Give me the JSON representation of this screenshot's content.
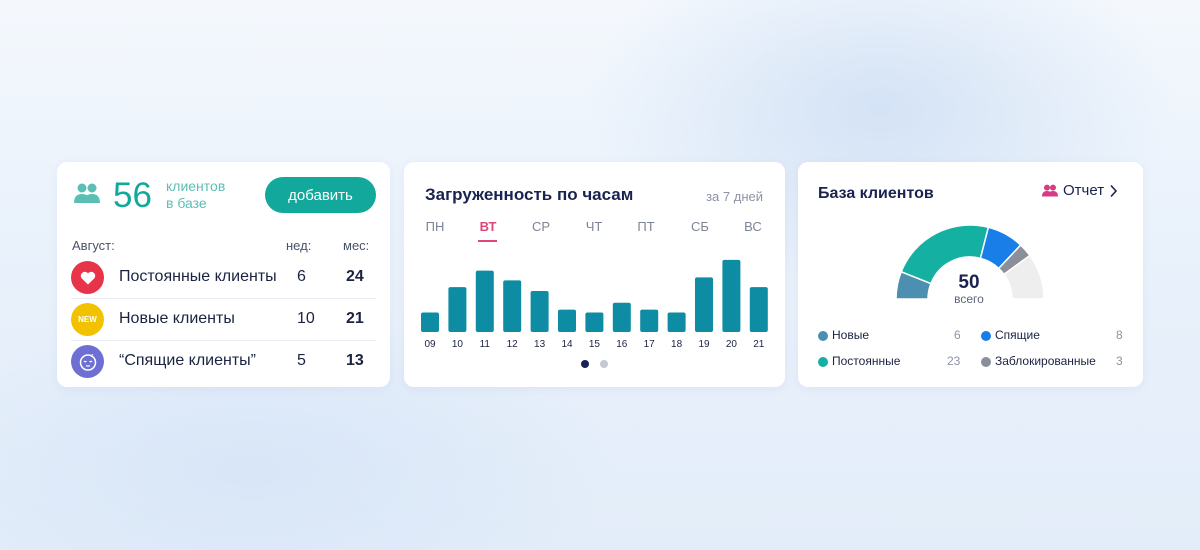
{
  "clients_card": {
    "count": "56",
    "caption_line1": "клиентов",
    "caption_line2": "в базе",
    "add_button": "добавить",
    "month_label": "Август:",
    "col_week": "нед:",
    "col_month": "мес:",
    "rows": [
      {
        "label": "Постоянные клиенты",
        "week": "6",
        "month": "24",
        "icon": "heart-icon",
        "color": "#e8344b"
      },
      {
        "label": "Новые клиенты",
        "week": "10",
        "month": "21",
        "icon": "new-badge-icon",
        "badge": "NEW",
        "color": "#f2c200"
      },
      {
        "label": "“Спящие клиенты”",
        "week": "5",
        "month": "13",
        "icon": "sleeping-face-icon",
        "color": "#6e6fd3"
      }
    ]
  },
  "load_card": {
    "title": "Загруженность по часам",
    "period": "за 7 дней",
    "days": [
      "ПН",
      "ВТ",
      "СР",
      "ЧТ",
      "ПТ",
      "СБ",
      "ВС"
    ],
    "active_day": "ВТ",
    "accent_color": "#e0457b",
    "bar_color": "#0e8ca3",
    "pager_active_color": "#1a2350",
    "pager_inactive_color": "#c4c8d0"
  },
  "chart_data": {
    "type": "bar",
    "categories": [
      "09",
      "10",
      "11",
      "12",
      "13",
      "14",
      "15",
      "16",
      "17",
      "18",
      "19",
      "20",
      "21"
    ],
    "values": [
      20,
      46,
      63,
      53,
      42,
      23,
      20,
      30,
      23,
      20,
      56,
      74,
      46
    ],
    "ylim": [
      0,
      80
    ],
    "grid": false,
    "title": "",
    "xlabel": "",
    "ylabel": ""
  },
  "base_card": {
    "title": "База клиентов",
    "report_link": "Отчет",
    "total": "50",
    "total_caption": "всего",
    "segments": [
      {
        "label": "Новые",
        "value": 6,
        "color": "#4d8fb0"
      },
      {
        "label": "Постоянные",
        "value": 23,
        "color": "#14b0a2"
      },
      {
        "label": "Спящие",
        "value": 8,
        "color": "#1a7ee8"
      },
      {
        "label": "Заблокированные",
        "value": 3,
        "color": "#8a8f99"
      }
    ],
    "remainder_color": "#eeeeef"
  }
}
